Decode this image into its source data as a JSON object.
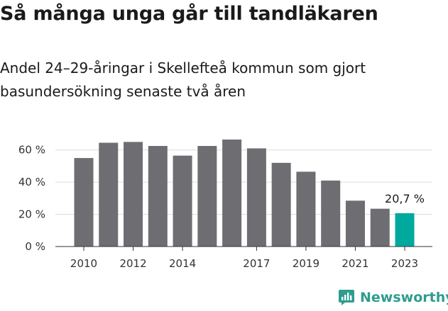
{
  "title": "Så många unga går till tandläkaren",
  "subtitle": "Andel 24–29-åringar i Skellefteå kommun som gjort basundersökning senaste två åren",
  "brand": {
    "name": "Newsworthy",
    "color": "#2f9c8e"
  },
  "chart_data": {
    "type": "bar",
    "categories": [
      "2010",
      "2011",
      "2012",
      "2013",
      "2014",
      "2015",
      "2016",
      "2017",
      "2018",
      "2019",
      "2020",
      "2021",
      "2022",
      "2023"
    ],
    "values": [
      55,
      64.5,
      65,
      62.5,
      56.5,
      62.5,
      66.5,
      61,
      52,
      46.5,
      41,
      28.5,
      23.5,
      20.7
    ],
    "x_tick_labels": [
      "2010",
      "",
      "2012",
      "",
      "2014",
      "",
      "",
      "2017",
      "",
      "2019",
      "",
      "2021",
      "",
      "2023"
    ],
    "y_ticks": [
      0,
      20,
      40,
      60
    ],
    "y_tick_labels": [
      "0 %",
      "20 %",
      "40 %",
      "60 %"
    ],
    "ylim": [
      0,
      70
    ],
    "highlight_index": 13,
    "highlight_label": "20,7 %",
    "bar_color": "#6e6d72",
    "highlight_color": "#00a99d",
    "grid": true
  }
}
